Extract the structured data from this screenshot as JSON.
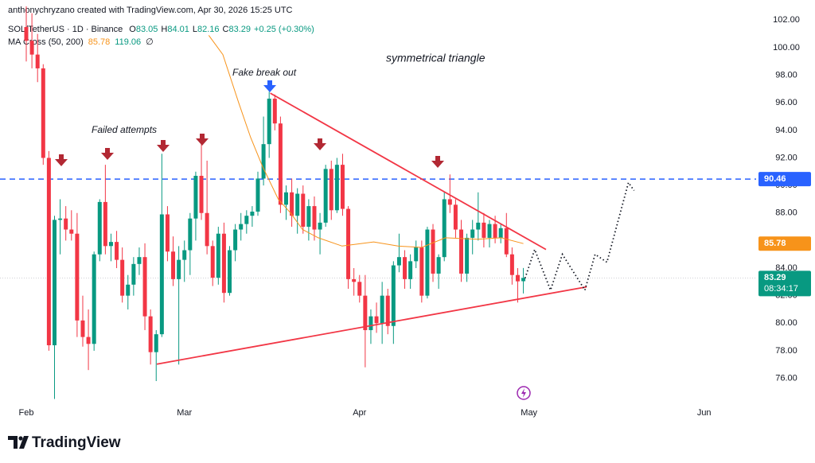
{
  "header": {
    "credit": "anthonychryzano created with TradingView.com, Apr 30, 2026 15:25 UTC",
    "brand": "TradingView"
  },
  "chart_data": {
    "type": "candlestick",
    "title": "SOL/TetherUS · 1D · Binance",
    "ohlc_keys": [
      "O",
      "H",
      "L",
      "C"
    ],
    "change": "+0.25 (+0.30%)",
    "countdown": "08:34:17",
    "up_color": "#089981",
    "down_color": "#f23645",
    "xlim": [
      -4.65,
      129.2
    ],
    "xticks": [
      {
        "value": 0,
        "label": "Feb"
      },
      {
        "value": 28,
        "label": "Mar"
      },
      {
        "value": 59,
        "label": "Apr"
      },
      {
        "value": 89,
        "label": "May"
      },
      {
        "value": 120,
        "label": "Jun"
      }
    ],
    "ylim": [
      74.3,
      103
    ],
    "yticks": [
      {
        "value": 76,
        "label": "76.00"
      },
      {
        "value": 78,
        "label": "78.00"
      },
      {
        "value": 80,
        "label": "80.00"
      },
      {
        "value": 82,
        "label": "82.00"
      },
      {
        "value": 84,
        "label": "84.00"
      },
      {
        "value": 86,
        "label": "86.00"
      },
      {
        "value": 88,
        "label": "88.00"
      },
      {
        "value": 90,
        "label": "90.00"
      },
      {
        "value": 92,
        "label": "92.00"
      },
      {
        "value": 94,
        "label": "94.00"
      },
      {
        "value": 96,
        "label": "96.00"
      },
      {
        "value": 98,
        "label": "98.00"
      },
      {
        "value": 100,
        "label": "100.00"
      },
      {
        "value": 102,
        "label": "102.00"
      }
    ],
    "grid": false,
    "candles": {
      "x": [
        0,
        1,
        2,
        3,
        4,
        5,
        6,
        7,
        8,
        9,
        10,
        11,
        12,
        13,
        14,
        15,
        16,
        17,
        18,
        19,
        20,
        21,
        22,
        23,
        24,
        25,
        26,
        27,
        28,
        29,
        30,
        31,
        32,
        33,
        34,
        35,
        36,
        37,
        38,
        39,
        40,
        41,
        42,
        43,
        44,
        45,
        46,
        47,
        48,
        49,
        50,
        51,
        52,
        53,
        54,
        55,
        56,
        57,
        58,
        59,
        60,
        61,
        62,
        63,
        64,
        65,
        66,
        67,
        68,
        69,
        70,
        71,
        72,
        73,
        74,
        75,
        76,
        77,
        78,
        79,
        80,
        81,
        82,
        83,
        84,
        85,
        86,
        87,
        88
      ],
      "open": [
        101.5,
        100.5,
        99.5,
        98.5,
        92,
        78.4,
        87.5,
        87.6,
        86.8,
        86.5,
        80.2,
        79,
        78.5,
        85,
        88.8,
        85.6,
        85.9,
        84.6,
        82,
        82.8,
        84.3,
        84.8,
        80.5,
        77.9,
        79.2,
        87.9,
        85.2,
        83.2,
        84.6,
        85.3,
        87.6,
        90.7,
        88,
        85.6,
        83.3,
        86.5,
        82.2,
        85.3,
        86.8,
        87.2,
        87.8,
        88.1,
        90.5,
        93,
        96.3,
        94.5,
        88.6,
        89.5,
        87.8,
        89.4,
        87,
        88.5,
        86.8,
        87.3,
        91.2,
        88.2,
        91.5,
        88.3,
        83.2,
        83,
        82,
        79.5,
        80.5,
        80,
        82,
        79.8,
        84.2,
        84.8,
        83.2,
        84.5,
        85.5,
        82,
        86.8,
        83.6,
        84.8,
        89,
        88.6,
        86.8,
        83.6,
        86.2,
        86.8,
        87.3,
        86.2,
        87.2,
        86.2,
        86.9,
        85,
        83.5,
        83.05
      ],
      "high": [
        103,
        102.5,
        101,
        98.8,
        92.5,
        87.8,
        89,
        88.5,
        88.2,
        88,
        82,
        81,
        85.2,
        89,
        91.5,
        86.5,
        86.7,
        85.5,
        83.5,
        84.8,
        85.5,
        85.8,
        81,
        79.5,
        92.3,
        88.5,
        86.3,
        85.6,
        86,
        88,
        91,
        93.3,
        91.8,
        86,
        87,
        87.3,
        85.6,
        87.2,
        88,
        88.2,
        88.5,
        91,
        95,
        96.8,
        96.6,
        95,
        90,
        90.5,
        89.8,
        90,
        89,
        89.2,
        88,
        91.5,
        91.8,
        92,
        92.3,
        88.5,
        84,
        83.5,
        83.5,
        81,
        81.5,
        83,
        82.5,
        84.5,
        86.5,
        85.3,
        85,
        86,
        86,
        87,
        87.2,
        85,
        89.5,
        90.8,
        89,
        87.5,
        86.5,
        87.5,
        89.5,
        88,
        87.5,
        87.8,
        87.2,
        88,
        85.5,
        84,
        84.01
      ],
      "low": [
        99,
        98.5,
        97.5,
        91.5,
        78,
        74.5,
        85,
        86,
        86,
        79,
        78.3,
        76.6,
        78,
        84.5,
        85,
        84.5,
        84,
        81.5,
        81,
        82,
        83.5,
        79.5,
        77,
        75.8,
        79,
        84.5,
        82.7,
        77,
        83,
        83.5,
        86,
        87.5,
        85,
        82.7,
        82.8,
        81.5,
        82,
        84.5,
        86,
        86.5,
        87,
        87.8,
        90,
        92,
        94,
        88,
        87.5,
        87,
        86.5,
        86.5,
        86,
        86,
        85,
        87,
        87.5,
        88,
        87.8,
        82.5,
        82,
        81.5,
        76.8,
        78.5,
        79.3,
        78.5,
        79.2,
        78.5,
        83.7,
        82.5,
        82.5,
        84,
        81.5,
        81.8,
        83,
        82.5,
        84.5,
        88,
        86.2,
        83,
        83,
        85,
        86,
        85.5,
        85.5,
        85.8,
        85.8,
        84.8,
        82.8,
        81.5,
        82.16
      ],
      "close": [
        100.5,
        99.5,
        98.5,
        92,
        78.4,
        87.5,
        87.6,
        86.8,
        86.5,
        80.2,
        79,
        78.5,
        85,
        88.8,
        85.6,
        85.9,
        84.6,
        82,
        82.8,
        84.3,
        84.8,
        80.5,
        77.9,
        79.2,
        87.9,
        85.2,
        83.2,
        84.6,
        85.3,
        87.6,
        90.7,
        88,
        85.6,
        83.3,
        86.5,
        82.2,
        85.3,
        86.8,
        87.2,
        87.8,
        88.1,
        90.5,
        93,
        96.3,
        94.5,
        88.6,
        89.5,
        87.8,
        89.4,
        87,
        88.5,
        86.8,
        87.3,
        91.2,
        88.2,
        91.5,
        88.3,
        83.2,
        83,
        82,
        79.5,
        80.5,
        80,
        82,
        79.8,
        84.2,
        84.8,
        83.2,
        84.5,
        85.5,
        82,
        86.8,
        83.6,
        84.8,
        89,
        88.6,
        86.8,
        83.6,
        86.2,
        86.8,
        87.3,
        86.2,
        87.2,
        86.2,
        86.9,
        85,
        83.5,
        83.04,
        83.29
      ]
    },
    "indicator": {
      "name": "MA Cross (50, 200)",
      "color": "#f7931a",
      "ma200": 119.06,
      "ma200_color": "#089981",
      "symbol": "∅",
      "x": [
        32.3,
        34.8,
        37.6,
        39.7,
        41.8,
        44.6,
        46.8,
        48.9,
        51.7,
        55.9,
        61.5,
        65.8,
        70,
        74.2,
        79.9,
        84.1,
        88
      ],
      "values": [
        100.9,
        99.5,
        96,
        93.5,
        91.4,
        89,
        88,
        86.8,
        86.2,
        85.6,
        85.9,
        85.6,
        85.5,
        86.2,
        86.1,
        86.2,
        85.78
      ]
    },
    "level": {
      "value": 90.46,
      "color": "#2962ff"
    },
    "trendlines": [
      {
        "color": "#f23645",
        "x": [
          43.2,
          92
        ],
        "values": [
          96.7,
          85.35
        ]
      },
      {
        "color": "#f23645",
        "x": [
          23.1,
          99.2
        ],
        "values": [
          77.03,
          82.64
        ]
      }
    ],
    "projection": {
      "color": "#131722",
      "x": [
        88.3,
        90,
        92.8,
        94.9,
        98.9,
        100.7,
        102.8,
        106.6,
        107.6
      ],
      "values": [
        83.27,
        85.35,
        82.4,
        85,
        82.4,
        85,
        84.43,
        90.21,
        89.63
      ]
    },
    "annotations": [
      "symmetrical triangle",
      "Fake break out",
      "Failed attempts"
    ]
  }
}
